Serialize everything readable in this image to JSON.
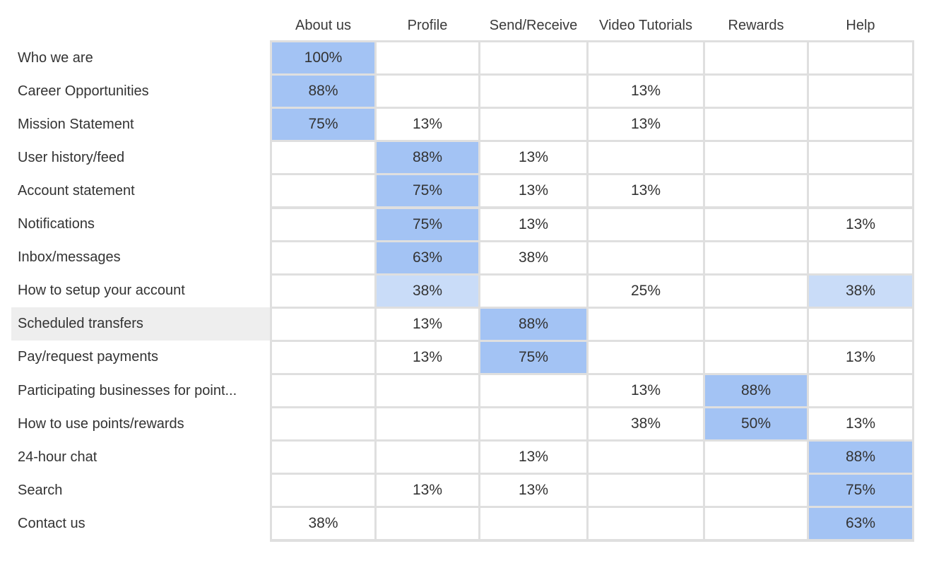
{
  "columns": [
    "About us",
    "Profile",
    "Send/Receive",
    "Video Tutorials",
    "Rewards",
    "Help"
  ],
  "colors": {
    "strong": "#a3c3f4",
    "light": "#c9dcf8",
    "hover_row": "#eeeeee",
    "grid_line": "#dfdfdf"
  },
  "rows": [
    {
      "label": "Who we are",
      "cells": [
        "100%",
        "",
        "",
        "",
        "",
        ""
      ],
      "hl": [
        1,
        0,
        0,
        0,
        0,
        0
      ]
    },
    {
      "label": "Career Opportunities",
      "cells": [
        "88%",
        "",
        "",
        "13%",
        "",
        ""
      ],
      "hl": [
        1,
        0,
        0,
        0,
        0,
        0
      ]
    },
    {
      "label": "Mission Statement",
      "cells": [
        "75%",
        "13%",
        "",
        "13%",
        "",
        ""
      ],
      "hl": [
        1,
        0,
        0,
        0,
        0,
        0
      ]
    },
    {
      "label": "User history/feed",
      "cells": [
        "",
        "88%",
        "13%",
        "",
        "",
        ""
      ],
      "hl": [
        0,
        1,
        0,
        0,
        0,
        0
      ]
    },
    {
      "label": "Account statement",
      "cells": [
        "",
        "75%",
        "13%",
        "13%",
        "",
        ""
      ],
      "hl": [
        0,
        1,
        0,
        0,
        0,
        0
      ]
    },
    {
      "label": "Notifications",
      "cells": [
        "",
        "75%",
        "13%",
        "",
        "",
        "13%"
      ],
      "hl": [
        0,
        1,
        0,
        0,
        0,
        0
      ]
    },
    {
      "label": "Inbox/messages",
      "cells": [
        "",
        "63%",
        "38%",
        "",
        "",
        ""
      ],
      "hl": [
        0,
        1,
        0,
        0,
        0,
        0
      ]
    },
    {
      "label": "How to setup your account",
      "cells": [
        "",
        "38%",
        "",
        "25%",
        "",
        "38%"
      ],
      "hl": [
        0,
        2,
        0,
        0,
        0,
        2
      ]
    },
    {
      "label": "Scheduled transfers",
      "cells": [
        "",
        "13%",
        "88%",
        "",
        "",
        ""
      ],
      "hl": [
        0,
        0,
        1,
        0,
        0,
        0
      ],
      "hover": true
    },
    {
      "label": "Pay/request payments",
      "cells": [
        "",
        "13%",
        "75%",
        "",
        "",
        "13%"
      ],
      "hl": [
        0,
        0,
        1,
        0,
        0,
        0
      ]
    },
    {
      "label": "Participating businesses for point...",
      "cells": [
        "",
        "",
        "",
        "13%",
        "88%",
        ""
      ],
      "hl": [
        0,
        0,
        0,
        0,
        1,
        0
      ]
    },
    {
      "label": "How to use points/rewards",
      "cells": [
        "",
        "",
        "",
        "38%",
        "50%",
        "13%"
      ],
      "hl": [
        0,
        0,
        0,
        0,
        1,
        0
      ]
    },
    {
      "label": "24-hour chat",
      "cells": [
        "",
        "",
        "13%",
        "",
        "",
        "88%"
      ],
      "hl": [
        0,
        0,
        0,
        0,
        0,
        1
      ]
    },
    {
      "label": "Search",
      "cells": [
        "",
        "13%",
        "13%",
        "",
        "",
        "75%"
      ],
      "hl": [
        0,
        0,
        0,
        0,
        0,
        1
      ]
    },
    {
      "label": "Contact us",
      "cells": [
        "38%",
        "",
        "",
        "",
        "",
        "63%"
      ],
      "hl": [
        0,
        0,
        0,
        0,
        0,
        1
      ]
    }
  ]
}
